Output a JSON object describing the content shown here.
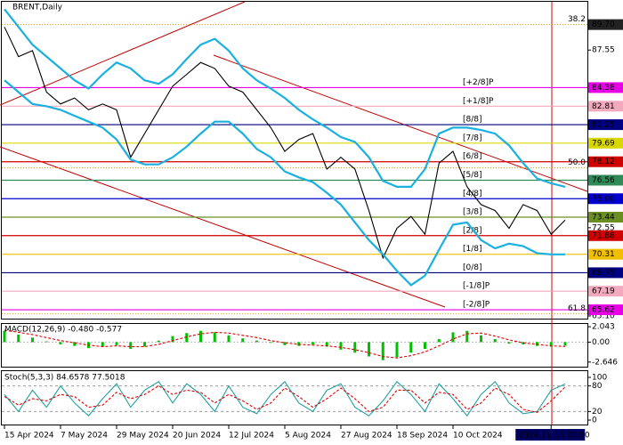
{
  "chart_data": [
    {
      "type": "line",
      "title": "BRENT,Daily",
      "categories": [
        "15 Apr 2024",
        null,
        null,
        null,
        "7 May 2024",
        null,
        null,
        null,
        "29 May 2024",
        null,
        null,
        null,
        "20 Jun 2024",
        null,
        null,
        null,
        "12 Jul 2024",
        null,
        null,
        null,
        "5 Aug 2024",
        null,
        null,
        null,
        "27 Aug 2024",
        null,
        null,
        null,
        "18 Sep 2024",
        null,
        null,
        null,
        "10 Oct 2024",
        null,
        null,
        null,
        null,
        null,
        null,
        "2024.11.15 00:00",
        null
      ],
      "series": [
        {
          "color": "#000000",
          "values": [
            89.5,
            87,
            87.5,
            84,
            83,
            83.5,
            82.5,
            83,
            82.5,
            78.5,
            80.5,
            82.5,
            84.5,
            85.5,
            86.5,
            86,
            84.5,
            84,
            82.5,
            81,
            79,
            80,
            80.5,
            77.5,
            78.5,
            77.5,
            74,
            70,
            72.5,
            73.5,
            72,
            78,
            79,
            76,
            74.5,
            74,
            72.5,
            74.5,
            74,
            72,
            73.2
          ]
        },
        {
          "color": "#1ab0e0",
          "values": [
            91,
            89.5,
            88,
            87,
            86,
            85,
            84.3,
            85.5,
            86.5,
            86,
            85,
            84.7,
            85.5,
            86.8,
            88,
            88.5,
            87.5,
            86,
            85,
            84.3,
            83.5,
            82.5,
            81.7,
            81,
            80.2,
            79.8,
            78.5,
            76.5,
            76,
            76,
            77.5,
            80.5,
            81,
            81,
            80.8,
            80.5,
            79.5,
            78,
            76.7,
            76.3,
            76
          ]
        },
        {
          "color": "#1ab0e0",
          "values": [
            85,
            84,
            83,
            82.8,
            82.5,
            82,
            81.5,
            81,
            80,
            78.3,
            77.9,
            77.9,
            78.5,
            79.4,
            80.5,
            81.5,
            81.5,
            80.5,
            79.2,
            78.5,
            77.3,
            76.8,
            76.4,
            75.5,
            74.5,
            73,
            71.5,
            70.3,
            68.9,
            67.7,
            68.5,
            70.7,
            72.8,
            73,
            71.5,
            70.8,
            71.2,
            71,
            70.4,
            70.3,
            70.3
          ]
        }
      ],
      "ylim": [
        65.1,
        91.4
      ],
      "yticks": [
        87.55,
        72.55,
        {
          "value": 65.1,
          "label": "65.10"
        }
      ],
      "levels": [
        {
          "value": 84.38,
          "label": "[+2/8]P",
          "price_label": "84.38",
          "color": "#e600e6"
        },
        {
          "value": 82.81,
          "label": "[+1/8]P",
          "price_label": "82.81",
          "color": "#f2a9bd"
        },
        {
          "value": 81.25,
          "label": "[8/8]",
          "price_label": "81.25",
          "color": "#000080"
        },
        {
          "value": 79.69,
          "label": "[7/8]",
          "price_label": "79.69",
          "color": "#d8d800"
        },
        {
          "value": 78.12,
          "label": "[6/8]",
          "price_label": "78.12",
          "color": "#d00000"
        },
        {
          "value": 76.56,
          "label": "[5/8]",
          "price_label": "76.56",
          "color": "#2e8b57"
        },
        {
          "value": 75,
          "label": "[4/8]",
          "price_label": "75.00",
          "color": "#0000cd"
        },
        {
          "value": 73.44,
          "label": "[3/8]",
          "price_label": "73.44",
          "color": "#6b8e23"
        },
        {
          "value": 71.88,
          "label": "[2/8]",
          "price_label": "71.88",
          "color": "#d00000"
        },
        {
          "value": 70.31,
          "label": "[1/8]",
          "price_label": "70.31",
          "color": "#f0c000"
        },
        {
          "value": 68.75,
          "label": "[0/8]",
          "price_label": "68.75",
          "color": "#000080"
        },
        {
          "value": 67.19,
          "label": "[-1/8]P",
          "price_label": "67.19",
          "color": "#f2a9bd"
        },
        {
          "value": 65.62,
          "label": "[-2/8]P",
          "price_label": "65.62",
          "color": "#e600e6"
        }
      ],
      "fib_levels": [
        {
          "value": 89.7,
          "label": "38.2",
          "price_label": "89.70",
          "color": "#e69a00"
        },
        {
          "value": 77.6,
          "label": "50.0",
          "color": "#e69a00"
        },
        {
          "value": 65.3,
          "label": "61.8",
          "color": "#e69a00"
        }
      ]
    },
    {
      "type": "bar",
      "title": "MACD(12,26,9) -0.480 -0.577",
      "series": [
        {
          "color": "#00c000",
          "values": [
            1.5,
            1.0,
            0.6,
            0.1,
            -0.3,
            -0.5,
            -0.8,
            -0.6,
            -0.4,
            -0.9,
            -0.6,
            0.2,
            0.8,
            1.2,
            1.5,
            1.3,
            0.9,
            0.5,
            0.2,
            -0.1,
            -0.4,
            -0.5,
            -0.3,
            -0.6,
            -1.0,
            -1.4,
            -1.9,
            -2.4,
            -2.0,
            -1.4,
            -0.9,
            0.4,
            1.3,
            1.5,
            0.9,
            0.4,
            -0.2,
            -0.3,
            -0.5,
            -0.6,
            -0.48
          ]
        },
        {
          "color": "#e00000",
          "values": [
            1.6,
            1.3,
            1.0,
            0.6,
            0.2,
            -0.1,
            -0.4,
            -0.6,
            -0.5,
            -0.6,
            -0.6,
            -0.3,
            0.2,
            0.7,
            1.1,
            1.3,
            1.2,
            0.9,
            0.6,
            0.2,
            -0.1,
            -0.3,
            -0.4,
            -0.5,
            -0.7,
            -1.0,
            -1.4,
            -1.9,
            -2.1,
            -1.8,
            -1.3,
            -0.5,
            0.4,
            1.1,
            1.2,
            0.8,
            0.3,
            -0.1,
            -0.3,
            -0.5,
            -0.577
          ]
        }
      ],
      "ylim": [
        -3.26,
        2.41
      ],
      "yticks": [
        2.043,
        {
          "value": 0,
          "label": "0.00"
        },
        -2.646
      ]
    },
    {
      "type": "line",
      "title": "Stoch(5,3,3) 84.6578 77.5018",
      "series": [
        {
          "color": "#20a0a0",
          "values": [
            60,
            20,
            70,
            30,
            80,
            40,
            10,
            50,
            85,
            30,
            70,
            90,
            40,
            85,
            60,
            20,
            80,
            30,
            15,
            60,
            90,
            40,
            20,
            70,
            85,
            30,
            10,
            45,
            90,
            60,
            20,
            85,
            50,
            10,
            60,
            90,
            40,
            15,
            20,
            70,
            84.6578
          ]
        },
        {
          "color": "#e00000",
          "values": [
            55,
            35,
            50,
            45,
            60,
            55,
            30,
            35,
            65,
            50,
            60,
            80,
            60,
            70,
            65,
            40,
            60,
            45,
            25,
            40,
            75,
            55,
            30,
            50,
            75,
            50,
            20,
            30,
            70,
            70,
            40,
            65,
            60,
            25,
            40,
            75,
            60,
            25,
            18,
            45,
            77.5018
          ]
        }
      ],
      "ylim": [
        0,
        100
      ],
      "yticks": [
        100,
        80,
        20,
        0
      ]
    }
  ]
}
